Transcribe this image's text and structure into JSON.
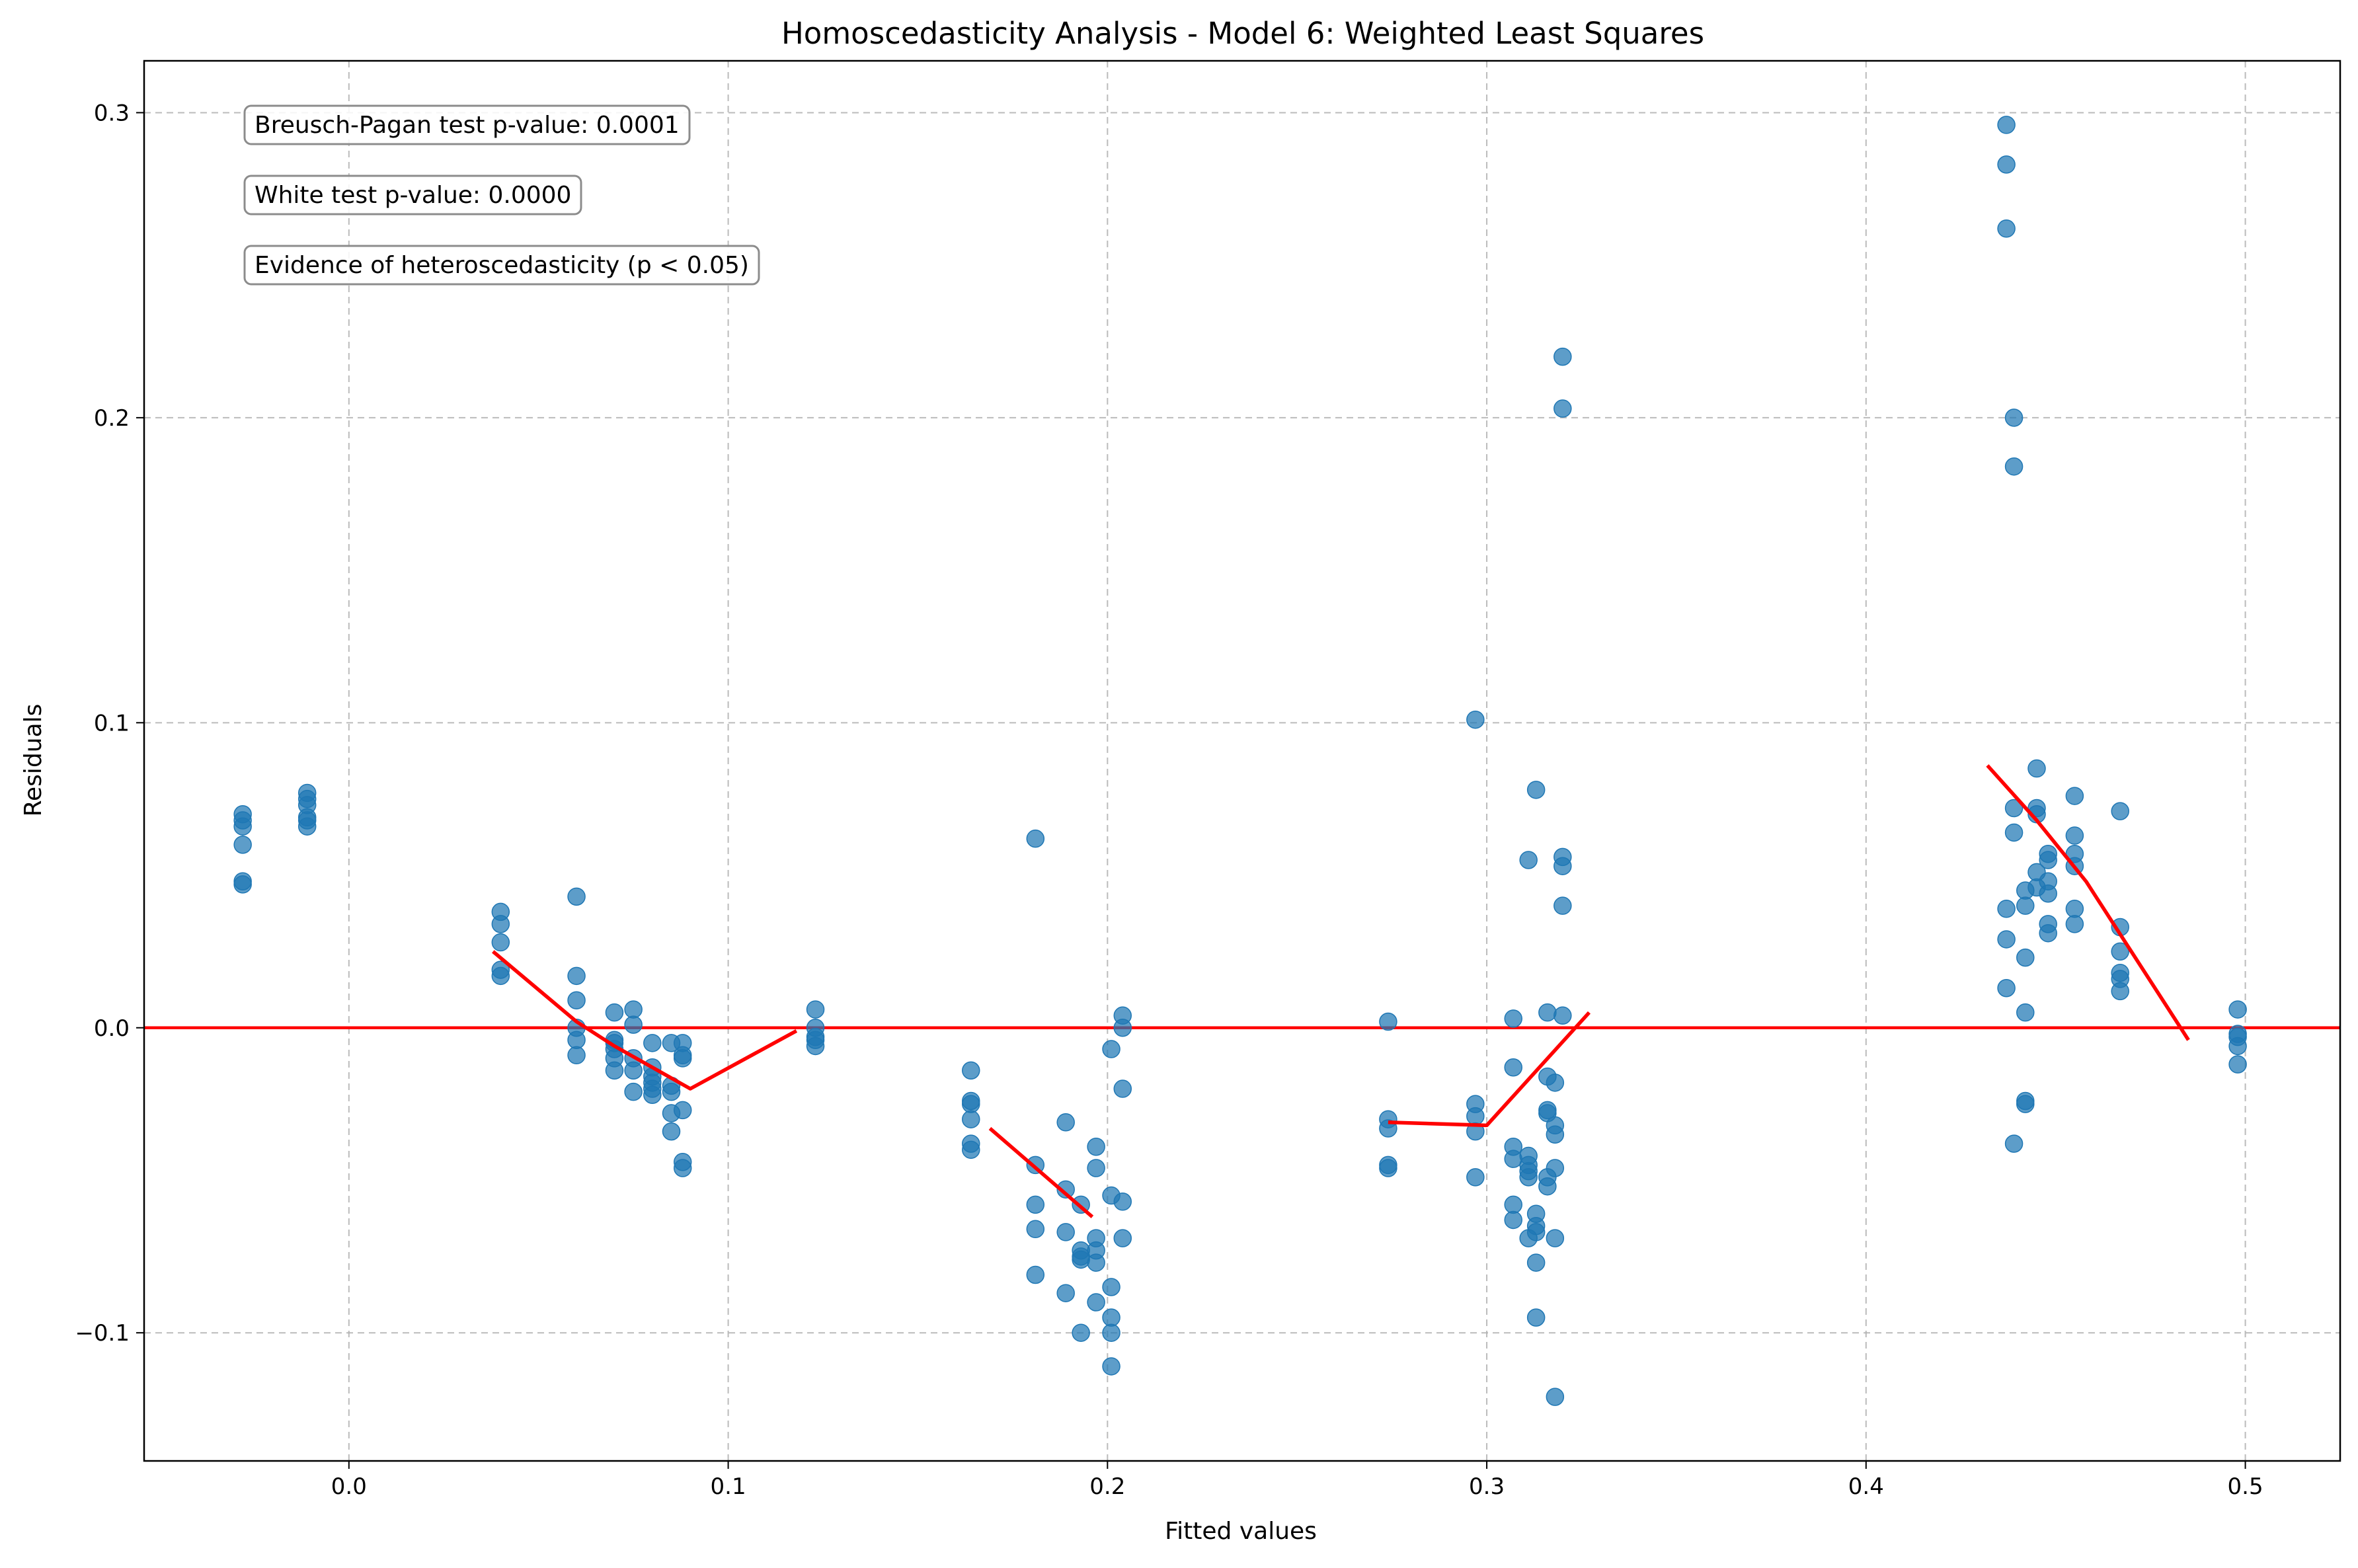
{
  "chart_data": {
    "type": "scatter",
    "title": "Homoscedasticity Analysis - Model 6: Weighted Least Squares",
    "xlabel": "Fitted values",
    "ylabel": "Residuals",
    "xlim": [
      -0.054,
      0.525
    ],
    "ylim": [
      -0.142,
      0.317
    ],
    "xticks": [
      {
        "value": 0.0,
        "label": "0.0"
      },
      {
        "value": 0.1,
        "label": "0.1"
      },
      {
        "value": 0.2,
        "label": "0.2"
      },
      {
        "value": 0.3,
        "label": "0.3"
      },
      {
        "value": 0.4,
        "label": "0.4"
      },
      {
        "value": 0.5,
        "label": "0.5"
      }
    ],
    "yticks": [
      {
        "value": -0.1,
        "label": "−0.1"
      },
      {
        "value": 0.0,
        "label": "0.0"
      },
      {
        "value": 0.1,
        "label": "0.1"
      },
      {
        "value": 0.2,
        "label": "0.2"
      },
      {
        "value": 0.3,
        "label": "0.3"
      }
    ],
    "grid": true,
    "annotations": [
      "Breusch-Pagan test p-value: 0.0001",
      "White test p-value: 0.0000",
      "Evidence of heteroscedasticity (p < 0.05)"
    ],
    "zero_line": {
      "y": 0.0,
      "color": "#ff0000"
    },
    "point_color": "#1f77b4",
    "trend_color": "#ff0000",
    "points": [
      {
        "x": -0.028,
        "y": 0.07
      },
      {
        "x": -0.028,
        "y": 0.068
      },
      {
        "x": -0.028,
        "y": 0.066
      },
      {
        "x": -0.028,
        "y": 0.06
      },
      {
        "x": -0.028,
        "y": 0.048
      },
      {
        "x": -0.028,
        "y": 0.047
      },
      {
        "x": -0.011,
        "y": 0.077
      },
      {
        "x": -0.011,
        "y": 0.075
      },
      {
        "x": -0.011,
        "y": 0.073
      },
      {
        "x": -0.011,
        "y": 0.069
      },
      {
        "x": -0.011,
        "y": 0.068
      },
      {
        "x": -0.011,
        "y": 0.066
      },
      {
        "x": 0.04,
        "y": 0.038
      },
      {
        "x": 0.04,
        "y": 0.034
      },
      {
        "x": 0.04,
        "y": 0.028
      },
      {
        "x": 0.04,
        "y": 0.019
      },
      {
        "x": 0.04,
        "y": 0.017
      },
      {
        "x": 0.06,
        "y": 0.043
      },
      {
        "x": 0.06,
        "y": 0.017
      },
      {
        "x": 0.06,
        "y": 0.009
      },
      {
        "x": 0.06,
        "y": 0.0
      },
      {
        "x": 0.06,
        "y": -0.004
      },
      {
        "x": 0.06,
        "y": -0.009
      },
      {
        "x": 0.07,
        "y": 0.005
      },
      {
        "x": 0.07,
        "y": -0.004
      },
      {
        "x": 0.07,
        "y": -0.005
      },
      {
        "x": 0.07,
        "y": -0.007
      },
      {
        "x": 0.07,
        "y": -0.01
      },
      {
        "x": 0.07,
        "y": -0.014
      },
      {
        "x": 0.075,
        "y": 0.006
      },
      {
        "x": 0.075,
        "y": 0.001
      },
      {
        "x": 0.075,
        "y": -0.01
      },
      {
        "x": 0.075,
        "y": -0.014
      },
      {
        "x": 0.075,
        "y": -0.021
      },
      {
        "x": 0.08,
        "y": -0.005
      },
      {
        "x": 0.08,
        "y": -0.013
      },
      {
        "x": 0.08,
        "y": -0.016
      },
      {
        "x": 0.08,
        "y": -0.018
      },
      {
        "x": 0.08,
        "y": -0.02
      },
      {
        "x": 0.08,
        "y": -0.022
      },
      {
        "x": 0.085,
        "y": -0.005
      },
      {
        "x": 0.085,
        "y": -0.019
      },
      {
        "x": 0.085,
        "y": -0.021
      },
      {
        "x": 0.085,
        "y": -0.028
      },
      {
        "x": 0.085,
        "y": -0.034
      },
      {
        "x": 0.088,
        "y": -0.005
      },
      {
        "x": 0.088,
        "y": -0.009
      },
      {
        "x": 0.088,
        "y": -0.01
      },
      {
        "x": 0.088,
        "y": -0.027
      },
      {
        "x": 0.088,
        "y": -0.044
      },
      {
        "x": 0.088,
        "y": -0.046
      },
      {
        "x": 0.123,
        "y": 0.006
      },
      {
        "x": 0.123,
        "y": 0.0
      },
      {
        "x": 0.123,
        "y": -0.003
      },
      {
        "x": 0.123,
        "y": -0.004
      },
      {
        "x": 0.123,
        "y": -0.006
      },
      {
        "x": 0.164,
        "y": -0.014
      },
      {
        "x": 0.164,
        "y": -0.024
      },
      {
        "x": 0.164,
        "y": -0.025
      },
      {
        "x": 0.164,
        "y": -0.03
      },
      {
        "x": 0.164,
        "y": -0.038
      },
      {
        "x": 0.164,
        "y": -0.04
      },
      {
        "x": 0.181,
        "y": 0.062
      },
      {
        "x": 0.181,
        "y": -0.045
      },
      {
        "x": 0.181,
        "y": -0.058
      },
      {
        "x": 0.181,
        "y": -0.066
      },
      {
        "x": 0.181,
        "y": -0.081
      },
      {
        "x": 0.189,
        "y": -0.031
      },
      {
        "x": 0.189,
        "y": -0.053
      },
      {
        "x": 0.189,
        "y": -0.067
      },
      {
        "x": 0.189,
        "y": -0.087
      },
      {
        "x": 0.193,
        "y": -0.058
      },
      {
        "x": 0.193,
        "y": -0.073
      },
      {
        "x": 0.193,
        "y": -0.075
      },
      {
        "x": 0.193,
        "y": -0.076
      },
      {
        "x": 0.193,
        "y": -0.1
      },
      {
        "x": 0.197,
        "y": -0.039
      },
      {
        "x": 0.197,
        "y": -0.046
      },
      {
        "x": 0.197,
        "y": -0.069
      },
      {
        "x": 0.197,
        "y": -0.073
      },
      {
        "x": 0.197,
        "y": -0.077
      },
      {
        "x": 0.197,
        "y": -0.09
      },
      {
        "x": 0.201,
        "y": -0.007
      },
      {
        "x": 0.201,
        "y": -0.055
      },
      {
        "x": 0.201,
        "y": -0.085
      },
      {
        "x": 0.201,
        "y": -0.095
      },
      {
        "x": 0.201,
        "y": -0.1
      },
      {
        "x": 0.201,
        "y": -0.111
      },
      {
        "x": 0.204,
        "y": 0.004
      },
      {
        "x": 0.204,
        "y": 0.0
      },
      {
        "x": 0.204,
        "y": -0.02
      },
      {
        "x": 0.204,
        "y": -0.057
      },
      {
        "x": 0.204,
        "y": -0.069
      },
      {
        "x": 0.274,
        "y": 0.002
      },
      {
        "x": 0.274,
        "y": -0.03
      },
      {
        "x": 0.274,
        "y": -0.033
      },
      {
        "x": 0.274,
        "y": -0.045
      },
      {
        "x": 0.274,
        "y": -0.046
      },
      {
        "x": 0.297,
        "y": 0.101
      },
      {
        "x": 0.297,
        "y": -0.025
      },
      {
        "x": 0.297,
        "y": -0.029
      },
      {
        "x": 0.297,
        "y": -0.034
      },
      {
        "x": 0.297,
        "y": -0.049
      },
      {
        "x": 0.307,
        "y": 0.003
      },
      {
        "x": 0.307,
        "y": -0.013
      },
      {
        "x": 0.307,
        "y": -0.039
      },
      {
        "x": 0.307,
        "y": -0.043
      },
      {
        "x": 0.307,
        "y": -0.058
      },
      {
        "x": 0.307,
        "y": -0.063
      },
      {
        "x": 0.311,
        "y": 0.055
      },
      {
        "x": 0.311,
        "y": -0.042
      },
      {
        "x": 0.311,
        "y": -0.045
      },
      {
        "x": 0.311,
        "y": -0.047
      },
      {
        "x": 0.311,
        "y": -0.049
      },
      {
        "x": 0.311,
        "y": -0.069
      },
      {
        "x": 0.313,
        "y": 0.078
      },
      {
        "x": 0.313,
        "y": -0.061
      },
      {
        "x": 0.313,
        "y": -0.065
      },
      {
        "x": 0.313,
        "y": -0.067
      },
      {
        "x": 0.313,
        "y": -0.077
      },
      {
        "x": 0.313,
        "y": -0.095
      },
      {
        "x": 0.316,
        "y": 0.005
      },
      {
        "x": 0.316,
        "y": -0.016
      },
      {
        "x": 0.316,
        "y": -0.027
      },
      {
        "x": 0.316,
        "y": -0.028
      },
      {
        "x": 0.316,
        "y": -0.049
      },
      {
        "x": 0.316,
        "y": -0.052
      },
      {
        "x": 0.318,
        "y": -0.018
      },
      {
        "x": 0.318,
        "y": -0.032
      },
      {
        "x": 0.318,
        "y": -0.035
      },
      {
        "x": 0.318,
        "y": -0.046
      },
      {
        "x": 0.318,
        "y": -0.069
      },
      {
        "x": 0.318,
        "y": -0.121
      },
      {
        "x": 0.32,
        "y": 0.22
      },
      {
        "x": 0.32,
        "y": 0.203
      },
      {
        "x": 0.32,
        "y": 0.056
      },
      {
        "x": 0.32,
        "y": 0.053
      },
      {
        "x": 0.32,
        "y": 0.04
      },
      {
        "x": 0.32,
        "y": 0.004
      },
      {
        "x": 0.437,
        "y": 0.296
      },
      {
        "x": 0.437,
        "y": 0.283
      },
      {
        "x": 0.437,
        "y": 0.262
      },
      {
        "x": 0.437,
        "y": 0.039
      },
      {
        "x": 0.437,
        "y": 0.029
      },
      {
        "x": 0.437,
        "y": 0.013
      },
      {
        "x": 0.439,
        "y": 0.2
      },
      {
        "x": 0.439,
        "y": 0.184
      },
      {
        "x": 0.439,
        "y": 0.072
      },
      {
        "x": 0.439,
        "y": 0.064
      },
      {
        "x": 0.439,
        "y": -0.038
      },
      {
        "x": 0.442,
        "y": 0.045
      },
      {
        "x": 0.442,
        "y": 0.04
      },
      {
        "x": 0.442,
        "y": 0.023
      },
      {
        "x": 0.442,
        "y": 0.005
      },
      {
        "x": 0.442,
        "y": -0.024
      },
      {
        "x": 0.442,
        "y": -0.025
      },
      {
        "x": 0.445,
        "y": 0.085
      },
      {
        "x": 0.445,
        "y": 0.072
      },
      {
        "x": 0.445,
        "y": 0.07
      },
      {
        "x": 0.445,
        "y": 0.051
      },
      {
        "x": 0.445,
        "y": 0.046
      },
      {
        "x": 0.448,
        "y": 0.057
      },
      {
        "x": 0.448,
        "y": 0.055
      },
      {
        "x": 0.448,
        "y": 0.048
      },
      {
        "x": 0.448,
        "y": 0.044
      },
      {
        "x": 0.448,
        "y": 0.034
      },
      {
        "x": 0.448,
        "y": 0.031
      },
      {
        "x": 0.455,
        "y": 0.076
      },
      {
        "x": 0.455,
        "y": 0.063
      },
      {
        "x": 0.455,
        "y": 0.057
      },
      {
        "x": 0.455,
        "y": 0.053
      },
      {
        "x": 0.455,
        "y": 0.039
      },
      {
        "x": 0.455,
        "y": 0.034
      },
      {
        "x": 0.467,
        "y": 0.071
      },
      {
        "x": 0.467,
        "y": 0.033
      },
      {
        "x": 0.467,
        "y": 0.025
      },
      {
        "x": 0.467,
        "y": 0.018
      },
      {
        "x": 0.467,
        "y": 0.016
      },
      {
        "x": 0.467,
        "y": 0.012
      },
      {
        "x": 0.498,
        "y": 0.006
      },
      {
        "x": 0.498,
        "y": -0.002
      },
      {
        "x": 0.498,
        "y": -0.003
      },
      {
        "x": 0.498,
        "y": -0.006
      },
      {
        "x": 0.498,
        "y": -0.012
      }
    ],
    "trend_lines": [
      {
        "x": [
          0.038,
          0.06,
          0.07,
          0.09,
          0.118
        ],
        "y": [
          0.025,
          0.002,
          -0.006,
          -0.02,
          -0.001
        ]
      },
      {
        "x": [
          0.169,
          0.196
        ],
        "y": [
          -0.033,
          -0.062
        ]
      },
      {
        "x": [
          0.274,
          0.3,
          0.327
        ],
        "y": [
          -0.031,
          -0.032,
          0.005
        ]
      },
      {
        "x": [
          0.432,
          0.445,
          0.458,
          0.485
        ],
        "y": [
          0.086,
          0.068,
          0.048,
          -0.004
        ]
      }
    ]
  }
}
